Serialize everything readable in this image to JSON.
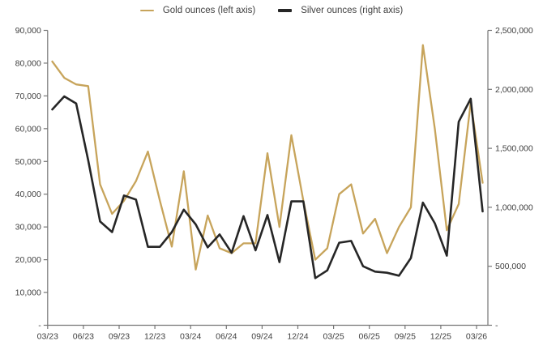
{
  "legend": {
    "gold_label": "Gold ounces (left axis)",
    "silver_label": "Silver ounces (right axis)"
  },
  "colors": {
    "gold": "#C7A45B",
    "silver": "#262626",
    "axis": "#767676",
    "text": "#404040"
  },
  "chart_data": {
    "type": "line",
    "title": "",
    "grid": false,
    "legend_position": "top",
    "months": [
      "03/23",
      "04/23",
      "05/23",
      "06/23",
      "07/23",
      "08/23",
      "09/23",
      "10/23",
      "11/23",
      "12/23",
      "01/24",
      "02/24",
      "03/24",
      "04/24",
      "05/24",
      "06/24",
      "07/24",
      "08/24",
      "09/24",
      "10/24",
      "11/24",
      "12/24",
      "01/25",
      "02/25",
      "03/25",
      "04/25",
      "05/25",
      "06/25",
      "07/25",
      "08/25",
      "09/25",
      "10/25",
      "11/25",
      "12/25",
      "01/26",
      "02/26",
      "03/26"
    ],
    "x_tick_labels": [
      "03/23",
      "06/23",
      "09/23",
      "12/23",
      "03/24",
      "06/24",
      "09/24",
      "12/24",
      "03/25",
      "06/25",
      "09/25",
      "12/25",
      "03/26"
    ],
    "series": [
      {
        "name": "Gold ounces (left axis)",
        "axis": "left",
        "color": "#C7A45B",
        "values": [
          80500,
          75500,
          73500,
          73000,
          43000,
          34000,
          38000,
          44000,
          53000,
          38000,
          24000,
          47000,
          17000,
          33500,
          23500,
          22000,
          25000,
          25000,
          52500,
          30000,
          58000,
          38000,
          20000,
          23500,
          40000,
          43000,
          28000,
          32500,
          22000,
          30000,
          36000,
          85500,
          60000,
          29000,
          37000,
          68000,
          43500
        ]
      },
      {
        "name": "Silver ounces (right axis)",
        "axis": "right",
        "color": "#262626",
        "values": [
          1830000,
          1940000,
          1880000,
          1400000,
          880000,
          790000,
          1100000,
          1065000,
          665000,
          665000,
          790000,
          980000,
          855000,
          660000,
          770000,
          615000,
          925000,
          635000,
          935000,
          535000,
          1050000,
          1050000,
          400000,
          465000,
          700000,
          715000,
          500000,
          455000,
          445000,
          420000,
          570000,
          1040000,
          865000,
          590000,
          1725000,
          1920000,
          965000
        ]
      }
    ],
    "left_axis": {
      "min": 0,
      "max": 90000,
      "tick_labels_top_to_bottom": [
        "90,000",
        "80,000",
        "70,000",
        "60,000",
        "50,000",
        "40,000",
        "30,000",
        "20,000",
        "10,000",
        "-"
      ]
    },
    "right_axis": {
      "min": 0,
      "max": 2500000,
      "tick_labels_top_to_bottom": [
        "2,500,000",
        "2,000,000",
        "1,500,000",
        "1,000,000",
        "500,000",
        "-"
      ]
    }
  }
}
